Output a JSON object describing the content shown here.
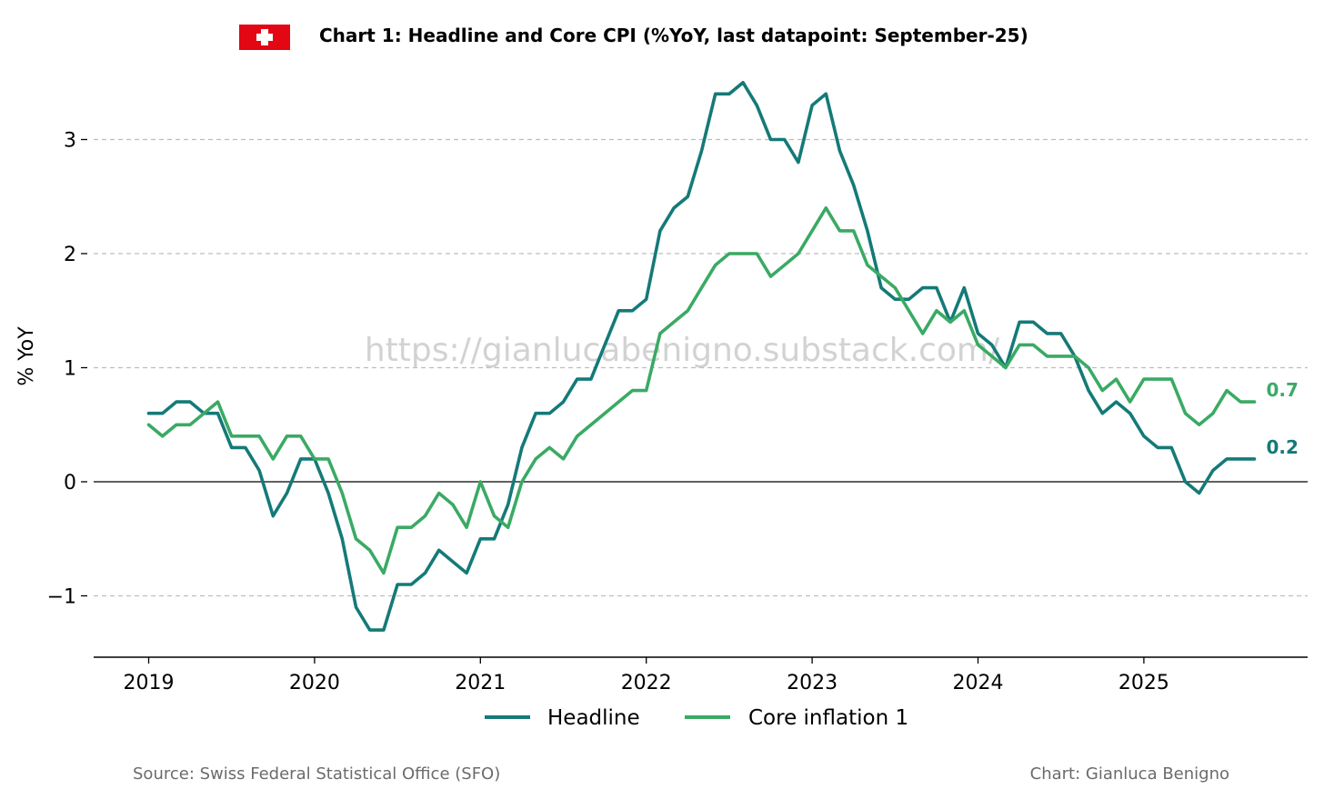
{
  "chart_data": {
    "type": "line",
    "title": "Chart 1: Headline and Core CPI (%YoY, last datapoint: September-25)",
    "ylabel": "% YoY",
    "xlabel": "",
    "ylim": [
      -1.55,
      3.55
    ],
    "yticks": [
      -1,
      0,
      1,
      2,
      3
    ],
    "ytick_labels": [
      "−1",
      "0",
      "1",
      "2",
      "3"
    ],
    "xticks": [
      "2019",
      "2020",
      "2021",
      "2022",
      "2023",
      "2024",
      "2025"
    ],
    "x_start": "2019-01",
    "grid": "horizontal dashed",
    "legend_placement": "bottom-center",
    "series": [
      {
        "name": "Headline",
        "color": "#147a78",
        "end_label": "0.2",
        "values": [
          0.6,
          0.6,
          0.7,
          0.7,
          0.6,
          0.6,
          0.3,
          0.3,
          0.1,
          -0.3,
          -0.1,
          0.2,
          0.2,
          -0.1,
          -0.5,
          -1.1,
          -1.3,
          -1.3,
          -0.9,
          -0.9,
          -0.8,
          -0.6,
          -0.7,
          -0.8,
          -0.5,
          -0.5,
          -0.2,
          0.3,
          0.6,
          0.6,
          0.7,
          0.9,
          0.9,
          1.2,
          1.5,
          1.5,
          1.6,
          2.2,
          2.4,
          2.5,
          2.9,
          3.4,
          3.4,
          3.5,
          3.3,
          3.0,
          3.0,
          2.8,
          3.3,
          3.4,
          2.9,
          2.6,
          2.2,
          1.7,
          1.6,
          1.6,
          1.7,
          1.7,
          1.4,
          1.7,
          1.3,
          1.2,
          1.0,
          1.4,
          1.4,
          1.3,
          1.3,
          1.1,
          0.8,
          0.6,
          0.7,
          0.6,
          0.4,
          0.3,
          0.3,
          0.0,
          -0.1,
          0.1,
          0.2,
          0.2,
          0.2
        ]
      },
      {
        "name": "Core inflation 1",
        "color": "#3aaa64",
        "end_label": "0.7",
        "values": [
          0.5,
          0.4,
          0.5,
          0.5,
          0.6,
          0.7,
          0.4,
          0.4,
          0.4,
          0.2,
          0.4,
          0.4,
          0.2,
          0.2,
          -0.1,
          -0.5,
          -0.6,
          -0.8,
          -0.4,
          -0.4,
          -0.3,
          -0.1,
          -0.2,
          -0.4,
          0.0,
          -0.3,
          -0.4,
          0.0,
          0.2,
          0.3,
          0.2,
          0.4,
          0.5,
          0.6,
          0.7,
          0.8,
          0.8,
          1.3,
          1.4,
          1.5,
          1.7,
          1.9,
          2.0,
          2.0,
          2.0,
          1.8,
          1.9,
          2.0,
          2.2,
          2.4,
          2.2,
          2.2,
          1.9,
          1.8,
          1.7,
          1.5,
          1.3,
          1.5,
          1.4,
          1.5,
          1.2,
          1.1,
          1.0,
          1.2,
          1.2,
          1.1,
          1.1,
          1.1,
          1.0,
          0.8,
          0.9,
          0.7,
          0.9,
          0.9,
          0.9,
          0.6,
          0.5,
          0.6,
          0.8,
          0.7,
          0.7
        ]
      }
    ]
  },
  "header": {
    "flag_icon": "swiss-flag-icon",
    "flag_color": "#e30613"
  },
  "watermark": "https://gianlucabenigno.substack.com/",
  "footer": {
    "source": "Source: Swiss Federal Statistical Office (SFO)",
    "credit": "Chart: Gianluca Benigno"
  }
}
